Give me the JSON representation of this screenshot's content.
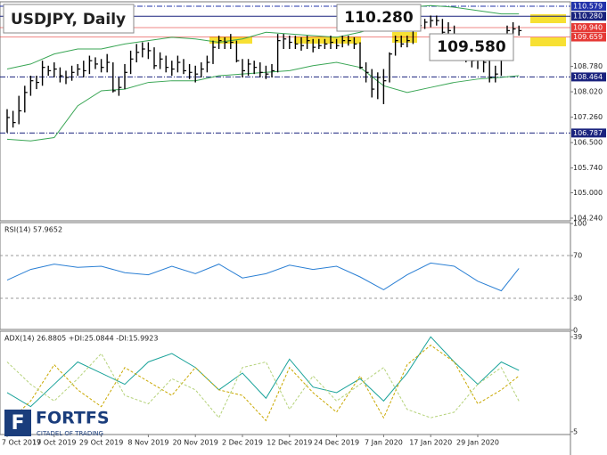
{
  "title": "USDJPY, Daily",
  "logo": {
    "name": "FORTFS",
    "tagline": "CITADEL OF TRADING"
  },
  "chart_data": [
    {
      "type": "ohlc",
      "categories": [
        "7 Oct 2019",
        null,
        null,
        null,
        null,
        null,
        null,
        null,
        "17 Oct 2019",
        null,
        null,
        null,
        null,
        null,
        null,
        null,
        "29 Oct 2019",
        null,
        null,
        null,
        null,
        null,
        null,
        null,
        "8 Nov 2019",
        null,
        null,
        null,
        null,
        null,
        null,
        null,
        "20 Nov 2019",
        null,
        null,
        null,
        null,
        null,
        null,
        null,
        "2 Dec 2019",
        null,
        null,
        null,
        null,
        null,
        null,
        null,
        "12 Dec 2019",
        null,
        null,
        null,
        null,
        null,
        null,
        null,
        "24 Dec 2019",
        null,
        null,
        null,
        null,
        null,
        null,
        null,
        "7 Jan 2020",
        null,
        null,
        null,
        null,
        null,
        null,
        null,
        "17 Jan 2020",
        null,
        null,
        null,
        null,
        null,
        null,
        null,
        "29 Jan 2020",
        null,
        null,
        null,
        null,
        null,
        null,
        null
      ],
      "close": [
        107.25,
        107.1,
        107.45,
        108.0,
        108.35,
        108.3,
        108.75,
        108.65,
        108.7,
        108.5,
        108.45,
        108.6,
        108.7,
        108.65,
        108.95,
        108.85,
        108.75,
        108.9,
        108.05,
        108.15,
        108.6,
        109.0,
        109.2,
        109.3,
        109.25,
        108.8,
        109.0,
        108.75,
        108.7,
        108.9,
        108.65,
        108.6,
        108.55,
        108.7,
        108.9,
        109.35,
        109.55,
        109.5,
        109.5,
        108.95,
        108.65,
        108.85,
        108.75,
        108.6,
        108.55,
        108.65,
        109.55,
        109.6,
        109.5,
        109.45,
        109.4,
        109.55,
        109.35,
        109.4,
        109.45,
        109.5,
        109.4,
        109.55,
        109.55,
        109.45,
        108.75,
        108.6,
        108.1,
        108.45,
        108.35,
        109.15,
        109.55,
        109.45,
        109.55,
        109.95,
        110.0,
        110.1,
        110.15,
        110.15,
        109.8,
        109.85,
        109.55,
        109.2,
        109.1,
        108.95,
        109.0,
        108.9,
        108.45,
        108.55,
        109.45,
        109.85,
        109.9,
        109.85
      ],
      "high": [
        107.5,
        107.45,
        107.9,
        108.2,
        108.5,
        108.5,
        108.95,
        108.8,
        108.9,
        108.75,
        108.65,
        108.8,
        108.85,
        108.95,
        109.1,
        109.05,
        109.0,
        109.15,
        108.9,
        108.45,
        108.85,
        109.25,
        109.45,
        109.5,
        109.5,
        109.35,
        109.2,
        109.1,
        108.95,
        109.1,
        109.0,
        108.85,
        108.8,
        108.9,
        109.1,
        109.55,
        109.7,
        109.65,
        109.75,
        109.55,
        109.0,
        109.0,
        108.95,
        108.9,
        108.8,
        108.85,
        109.75,
        109.75,
        109.7,
        109.7,
        109.65,
        109.7,
        109.6,
        109.6,
        109.6,
        109.7,
        109.6,
        109.7,
        109.7,
        109.65,
        109.5,
        108.9,
        108.7,
        108.6,
        108.7,
        109.2,
        109.7,
        109.7,
        109.7,
        110.1,
        110.2,
        110.2,
        110.3,
        110.3,
        110.2,
        110.1,
        110.0,
        109.7,
        109.35,
        109.25,
        109.2,
        109.15,
        109.0,
        108.8,
        109.6,
        110.0,
        110.1,
        110.0
      ],
      "low": [
        106.8,
        106.95,
        107.05,
        107.4,
        107.9,
        108.1,
        108.2,
        108.5,
        108.45,
        108.3,
        108.25,
        108.35,
        108.5,
        108.45,
        108.55,
        108.7,
        108.6,
        108.6,
        108.0,
        107.9,
        108.1,
        108.55,
        108.9,
        109.05,
        109.0,
        108.7,
        108.7,
        108.6,
        108.5,
        108.6,
        108.55,
        108.4,
        108.3,
        108.45,
        108.6,
        108.85,
        109.3,
        109.3,
        109.3,
        108.9,
        108.45,
        108.5,
        108.55,
        108.45,
        108.4,
        108.45,
        108.6,
        109.3,
        109.3,
        109.3,
        109.25,
        109.3,
        109.2,
        109.3,
        109.3,
        109.3,
        109.3,
        109.35,
        109.4,
        109.3,
        108.7,
        108.3,
        107.85,
        107.8,
        107.65,
        108.3,
        109.1,
        109.35,
        109.35,
        109.45,
        109.85,
        109.9,
        109.95,
        110.0,
        109.7,
        109.7,
        109.3,
        109.1,
        108.9,
        108.75,
        108.7,
        108.6,
        108.3,
        108.3,
        108.5,
        109.4,
        109.7,
        109.7
      ],
      "color": "#000000",
      "bands": {
        "color": "#3aa655",
        "x": [
          0,
          4,
          8,
          12,
          16,
          20,
          24,
          28,
          32,
          36,
          40,
          44,
          48,
          52,
          56,
          60,
          64,
          68,
          72,
          76,
          80,
          84,
          87
        ],
        "upper": [
          108.7,
          108.85,
          109.15,
          109.3,
          109.3,
          109.45,
          109.55,
          109.65,
          109.6,
          109.5,
          109.6,
          109.8,
          109.75,
          109.7,
          109.65,
          109.8,
          110.0,
          110.55,
          110.6,
          110.55,
          110.45,
          110.35,
          110.35
        ],
        "lower": [
          106.6,
          106.55,
          106.65,
          107.6,
          108.05,
          108.1,
          108.3,
          108.35,
          108.35,
          108.5,
          108.55,
          108.6,
          108.65,
          108.8,
          108.9,
          108.75,
          108.2,
          108.0,
          108.15,
          108.3,
          108.4,
          108.45,
          108.5
        ]
      },
      "ylim": [
        104.24,
        110.579
      ],
      "yticks": [
        {
          "value": 108.78,
          "label": "108.780"
        },
        {
          "value": 108.02,
          "label": "108.020"
        },
        {
          "value": 107.26,
          "label": "107.260"
        },
        {
          "value": 106.5,
          "label": "106.500"
        },
        {
          "value": 105.74,
          "label": "105.740"
        },
        {
          "value": 105.0,
          "label": "105.000"
        },
        {
          "value": 104.24,
          "label": "104.240"
        }
      ],
      "levels": [
        {
          "value": 110.579,
          "label": "110.579",
          "color": "#2233aa",
          "line": "dashdot"
        },
        {
          "value": 110.28,
          "label": "110.280",
          "color": "#1a237e",
          "line": "solid"
        },
        {
          "value": 109.94,
          "label": "109.940",
          "color": "#e53935",
          "line": "solid"
        },
        {
          "value": 109.659,
          "label": "109.659",
          "color": "#e53935",
          "line": "solid"
        },
        {
          "value": 108.464,
          "label": "108.464",
          "color": "#1a237e",
          "line": "dashdot"
        },
        {
          "value": 106.787,
          "label": "106.787",
          "color": "#1a237e",
          "line": "dashdot"
        }
      ],
      "annotations": [
        {
          "value": 110.28,
          "label": "110.280"
        },
        {
          "value": 109.58,
          "label": "109.580"
        }
      ]
    },
    {
      "type": "line",
      "label": "RSI(14) 57.9652",
      "x": [
        0,
        4,
        8,
        12,
        16,
        20,
        24,
        28,
        32,
        36,
        40,
        44,
        48,
        52,
        56,
        60,
        64,
        68,
        72,
        76,
        80,
        84,
        87
      ],
      "series": [
        {
          "color": "#2a7fd4",
          "values": [
            47,
            57,
            62,
            59,
            60,
            54,
            52,
            60,
            53,
            62,
            49,
            53,
            61,
            57,
            60,
            50,
            38,
            52,
            63,
            60,
            46,
            37,
            58
          ]
        }
      ],
      "ylim": [
        0,
        100
      ],
      "yticks": [
        0,
        30,
        70,
        100
      ],
      "guides": [
        30,
        70
      ]
    },
    {
      "type": "line",
      "label": "ADX(14) 26.8805 +DI:25.0844 -DI:15.9923",
      "x": [
        0,
        4,
        8,
        12,
        16,
        20,
        24,
        28,
        32,
        36,
        40,
        44,
        48,
        52,
        56,
        60,
        64,
        68,
        72,
        76,
        80,
        84,
        87
      ],
      "series": [
        {
          "color": "#1aa39a",
          "dash": false,
          "values": [
            19,
            14,
            22,
            30,
            26,
            22,
            30,
            33,
            28,
            20,
            26,
            17,
            31,
            21,
            19,
            24,
            16,
            26,
            39,
            30,
            22,
            30,
            27
          ]
        },
        {
          "color": "#c9a800",
          "dash": true,
          "values": [
            8,
            16,
            29,
            20,
            14,
            28,
            23,
            18,
            28,
            20,
            18,
            9,
            28,
            19,
            12,
            25,
            10,
            29,
            36,
            30,
            15,
            20,
            25
          ]
        },
        {
          "color": "#b5d27a",
          "dash": true,
          "values": [
            30,
            22,
            16,
            24,
            33,
            18,
            15,
            24,
            20,
            10,
            28,
            30,
            13,
            25,
            16,
            22,
            28,
            13,
            10,
            12,
            22,
            28,
            16
          ]
        }
      ],
      "ylim": [
        4,
        41
      ],
      "yticks": [
        5,
        39
      ]
    }
  ]
}
